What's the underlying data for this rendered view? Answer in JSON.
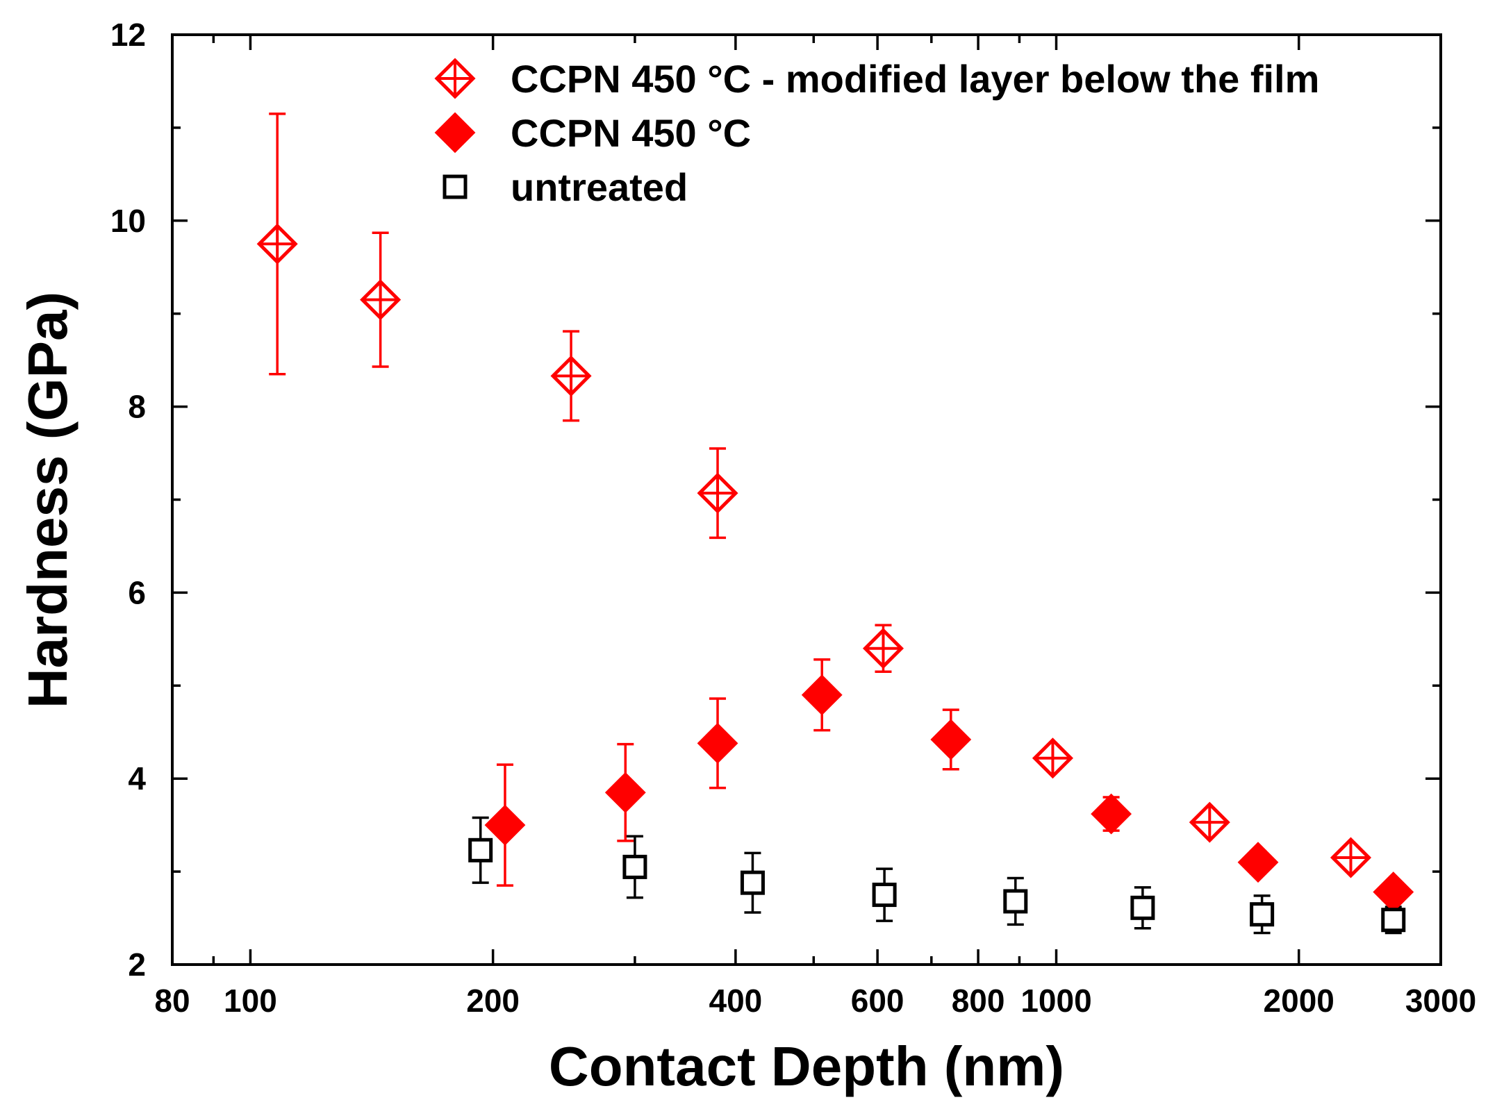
{
  "chart_data": {
    "type": "scatter",
    "title": "",
    "xlabel": "Contact Depth (nm)",
    "ylabel": "Hardness (GPa)",
    "xscale": "log",
    "xlim": [
      80,
      3000
    ],
    "ylim": [
      2,
      12
    ],
    "x_ticks": [
      80,
      100,
      200,
      400,
      600,
      800,
      1000,
      2000,
      3000
    ],
    "x_tick_labels": [
      "80",
      "100",
      "200",
      "400",
      "600",
      "800",
      "1000",
      "2000",
      "3000"
    ],
    "y_ticks": [
      2,
      4,
      6,
      8,
      10,
      12
    ],
    "y_tick_labels": [
      "2",
      "4",
      "6",
      "8",
      "10",
      "12"
    ],
    "legend_position": "top",
    "series": [
      {
        "name": "CCPN 450 °C - modified layer below the film",
        "marker": "diamond-crosshair-open",
        "color": "#ff0000",
        "points": [
          {
            "x": 108,
            "y": 9.75,
            "err": 1.4
          },
          {
            "x": 145,
            "y": 9.15,
            "err": 0.72
          },
          {
            "x": 250,
            "y": 8.33,
            "err": 0.48
          },
          {
            "x": 380,
            "y": 7.07,
            "err": 0.48
          },
          {
            "x": 610,
            "y": 5.4,
            "err": 0.25
          },
          {
            "x": 990,
            "y": 4.22,
            "err": 0.05
          },
          {
            "x": 1550,
            "y": 3.53,
            "err": 0.05
          },
          {
            "x": 2320,
            "y": 3.15,
            "err": 0.05
          }
        ]
      },
      {
        "name": "CCPN 450 °C",
        "marker": "diamond-filled",
        "color": "#ff0000",
        "points": [
          {
            "x": 207,
            "y": 3.5,
            "err": 0.65
          },
          {
            "x": 292,
            "y": 3.85,
            "err": 0.52
          },
          {
            "x": 380,
            "y": 4.38,
            "err": 0.48
          },
          {
            "x": 512,
            "y": 4.9,
            "err": 0.38
          },
          {
            "x": 740,
            "y": 4.42,
            "err": 0.32
          },
          {
            "x": 1170,
            "y": 3.62,
            "err": 0.18
          },
          {
            "x": 1780,
            "y": 3.1,
            "err": 0.12
          },
          {
            "x": 2620,
            "y": 2.78,
            "err": 0.08
          }
        ]
      },
      {
        "name": "untreated",
        "marker": "square-open",
        "color": "#000000",
        "points": [
          {
            "x": 193,
            "y": 3.23,
            "err": 0.35
          },
          {
            "x": 300,
            "y": 3.05,
            "err": 0.33
          },
          {
            "x": 420,
            "y": 2.88,
            "err": 0.32
          },
          {
            "x": 612,
            "y": 2.75,
            "err": 0.28
          },
          {
            "x": 890,
            "y": 2.68,
            "err": 0.25
          },
          {
            "x": 1280,
            "y": 2.61,
            "err": 0.22
          },
          {
            "x": 1800,
            "y": 2.54,
            "err": 0.2
          },
          {
            "x": 2620,
            "y": 2.48,
            "err": 0.14
          }
        ]
      }
    ]
  }
}
